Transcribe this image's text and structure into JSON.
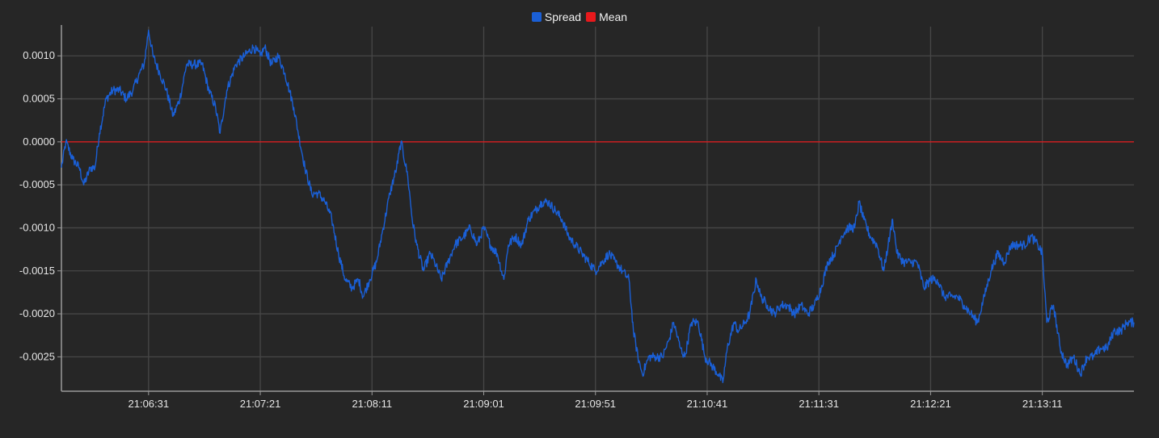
{
  "chart_data": {
    "type": "line",
    "legend_position": "top-center",
    "grid": true,
    "series": [
      {
        "name": "Spread",
        "color": "#1a5fd6",
        "x_start": "21:05:52",
        "x_end": "21:13:52",
        "anchors": [
          [
            "21:05:52",
            -0.0003
          ],
          [
            "21:05:54",
            0.0
          ],
          [
            "21:05:57",
            -0.0002
          ],
          [
            "21:06:00",
            -0.0003
          ],
          [
            "21:06:02",
            -0.0005
          ],
          [
            "21:06:05",
            -0.0003
          ],
          [
            "21:06:07",
            -0.0003
          ],
          [
            "21:06:09",
            0.0001
          ],
          [
            "21:06:12",
            0.0005
          ],
          [
            "21:06:15",
            0.0006
          ],
          [
            "21:06:18",
            0.0006
          ],
          [
            "21:06:21",
            0.0005
          ],
          [
            "21:06:24",
            0.0006
          ],
          [
            "21:06:27",
            0.0008
          ],
          [
            "21:06:29",
            0.0009
          ],
          [
            "21:06:31",
            0.0013
          ],
          [
            "21:06:33",
            0.001
          ],
          [
            "21:06:36",
            0.0008
          ],
          [
            "21:06:39",
            0.0006
          ],
          [
            "21:06:42",
            0.0003
          ],
          [
            "21:06:45",
            0.0005
          ],
          [
            "21:06:48",
            0.0009
          ],
          [
            "21:06:51",
            0.0009
          ],
          [
            "21:06:55",
            0.0009
          ],
          [
            "21:06:58",
            0.0006
          ],
          [
            "21:07:01",
            0.0004
          ],
          [
            "21:07:03",
            0.0001
          ],
          [
            "21:07:06",
            0.0006
          ],
          [
            "21:07:10",
            0.0009
          ],
          [
            "21:07:14",
            0.001
          ],
          [
            "21:07:18",
            0.0011
          ],
          [
            "21:07:21",
            0.001
          ],
          [
            "21:07:23",
            0.0011
          ],
          [
            "21:07:26",
            0.0009
          ],
          [
            "21:07:29",
            0.001
          ],
          [
            "21:07:32",
            0.0008
          ],
          [
            "21:07:34",
            0.0006
          ],
          [
            "21:07:36",
            0.0004
          ],
          [
            "21:07:38",
            0.0001
          ],
          [
            "21:07:41",
            -0.0003
          ],
          [
            "21:07:44",
            -0.0006
          ],
          [
            "21:07:47",
            -0.0006
          ],
          [
            "21:07:50",
            -0.0007
          ],
          [
            "21:07:53",
            -0.0009
          ],
          [
            "21:07:56",
            -0.0013
          ],
          [
            "21:07:59",
            -0.0016
          ],
          [
            "21:08:02",
            -0.0017
          ],
          [
            "21:08:05",
            -0.0016
          ],
          [
            "21:08:07",
            -0.0018
          ],
          [
            "21:08:10",
            -0.0016
          ],
          [
            "21:08:13",
            -0.0014
          ],
          [
            "21:08:16",
            -0.001
          ],
          [
            "21:08:19",
            -0.0006
          ],
          [
            "21:08:22",
            -0.0003
          ],
          [
            "21:08:24",
            0.0
          ],
          [
            "21:08:27",
            -0.0004
          ],
          [
            "21:08:29",
            -0.0009
          ],
          [
            "21:08:31",
            -0.0012
          ],
          [
            "21:08:34",
            -0.0015
          ],
          [
            "21:08:37",
            -0.0013
          ],
          [
            "21:08:39",
            -0.0014
          ],
          [
            "21:08:42",
            -0.0016
          ],
          [
            "21:08:45",
            -0.0014
          ],
          [
            "21:08:48",
            -0.0012
          ],
          [
            "21:08:52",
            -0.0011
          ],
          [
            "21:08:55",
            -0.001
          ],
          [
            "21:08:58",
            -0.0012
          ],
          [
            "21:09:01",
            -0.001
          ],
          [
            "21:09:04",
            -0.0012
          ],
          [
            "21:09:07",
            -0.0013
          ],
          [
            "21:09:10",
            -0.0016
          ],
          [
            "21:09:12",
            -0.0012
          ],
          [
            "21:09:15",
            -0.0011
          ],
          [
            "21:09:18",
            -0.0012
          ],
          [
            "21:09:21",
            -0.0009
          ],
          [
            "21:09:24",
            -0.0008
          ],
          [
            "21:09:27",
            -0.0007
          ],
          [
            "21:09:30",
            -0.0007
          ],
          [
            "21:09:33",
            -0.0008
          ],
          [
            "21:09:36",
            -0.0009
          ],
          [
            "21:09:39",
            -0.0011
          ],
          [
            "21:09:42",
            -0.0012
          ],
          [
            "21:09:45",
            -0.0013
          ],
          [
            "21:09:48",
            -0.0014
          ],
          [
            "21:09:51",
            -0.0015
          ],
          [
            "21:09:54",
            -0.0014
          ],
          [
            "21:09:57",
            -0.0013
          ],
          [
            "21:10:00",
            -0.0014
          ],
          [
            "21:10:03",
            -0.0015
          ],
          [
            "21:10:06",
            -0.0016
          ],
          [
            "21:10:08",
            -0.0022
          ],
          [
            "21:10:10",
            -0.0025
          ],
          [
            "21:10:12",
            -0.0027
          ],
          [
            "21:10:15",
            -0.0025
          ],
          [
            "21:10:18",
            -0.0025
          ],
          [
            "21:10:21",
            -0.0025
          ],
          [
            "21:10:24",
            -0.0023
          ],
          [
            "21:10:26",
            -0.0021
          ],
          [
            "21:10:29",
            -0.0024
          ],
          [
            "21:10:31",
            -0.0025
          ],
          [
            "21:10:34",
            -0.0021
          ],
          [
            "21:10:37",
            -0.0021
          ],
          [
            "21:10:40",
            -0.0025
          ],
          [
            "21:10:43",
            -0.0026
          ],
          [
            "21:10:46",
            -0.0027
          ],
          [
            "21:10:48",
            -0.0028
          ],
          [
            "21:10:50",
            -0.0024
          ],
          [
            "21:10:53",
            -0.0021
          ],
          [
            "21:10:55",
            -0.0022
          ],
          [
            "21:10:58",
            -0.0021
          ],
          [
            "21:11:00",
            -0.002
          ],
          [
            "21:11:03",
            -0.0016
          ],
          [
            "21:11:05",
            -0.0018
          ],
          [
            "21:11:08",
            -0.0019
          ],
          [
            "21:11:11",
            -0.002
          ],
          [
            "21:11:14",
            -0.0019
          ],
          [
            "21:11:17",
            -0.0019
          ],
          [
            "21:11:20",
            -0.002
          ],
          [
            "21:11:23",
            -0.0019
          ],
          [
            "21:11:26",
            -0.002
          ],
          [
            "21:11:29",
            -0.0019
          ],
          [
            "21:11:32",
            -0.0017
          ],
          [
            "21:11:35",
            -0.0014
          ],
          [
            "21:11:38",
            -0.0013
          ],
          [
            "21:11:41",
            -0.0011
          ],
          [
            "21:11:44",
            -0.001
          ],
          [
            "21:11:47",
            -0.001
          ],
          [
            "21:11:49",
            -0.0007
          ],
          [
            "21:11:51",
            -0.0009
          ],
          [
            "21:11:54",
            -0.0011
          ],
          [
            "21:11:57",
            -0.0012
          ],
          [
            "21:12:00",
            -0.0015
          ],
          [
            "21:12:02",
            -0.0012
          ],
          [
            "21:12:04",
            -0.0009
          ],
          [
            "21:12:06",
            -0.0013
          ],
          [
            "21:12:09",
            -0.0014
          ],
          [
            "21:12:12",
            -0.0014
          ],
          [
            "21:12:15",
            -0.0014
          ],
          [
            "21:12:18",
            -0.0017
          ],
          [
            "21:12:21",
            -0.0016
          ],
          [
            "21:12:24",
            -0.0016
          ],
          [
            "21:12:27",
            -0.0018
          ],
          [
            "21:12:30",
            -0.0018
          ],
          [
            "21:12:33",
            -0.0018
          ],
          [
            "21:12:36",
            -0.0019
          ],
          [
            "21:12:39",
            -0.002
          ],
          [
            "21:12:42",
            -0.0021
          ],
          [
            "21:12:45",
            -0.0018
          ],
          [
            "21:12:48",
            -0.0015
          ],
          [
            "21:12:51",
            -0.0013
          ],
          [
            "21:12:54",
            -0.0014
          ],
          [
            "21:12:57",
            -0.0012
          ],
          [
            "21:13:00",
            -0.0012
          ],
          [
            "21:13:03",
            -0.0012
          ],
          [
            "21:13:06",
            -0.0011
          ],
          [
            "21:13:09",
            -0.0012
          ],
          [
            "21:13:11",
            -0.0013
          ],
          [
            "21:13:13",
            -0.0021
          ],
          [
            "21:13:16",
            -0.0019
          ],
          [
            "21:13:19",
            -0.0024
          ],
          [
            "21:13:22",
            -0.0026
          ],
          [
            "21:13:25",
            -0.0025
          ],
          [
            "21:13:28",
            -0.0027
          ],
          [
            "21:13:31",
            -0.0025
          ],
          [
            "21:13:34",
            -0.0025
          ],
          [
            "21:13:37",
            -0.0024
          ],
          [
            "21:13:40",
            -0.0024
          ],
          [
            "21:13:43",
            -0.0022
          ],
          [
            "21:13:46",
            -0.0022
          ],
          [
            "21:13:49",
            -0.0021
          ],
          [
            "21:13:52",
            -0.0021
          ]
        ]
      },
      {
        "name": "Mean",
        "color": "#e8191c",
        "y": 0.0
      }
    ],
    "x_ticks": [
      "21:06:31",
      "21:07:21",
      "21:08:11",
      "21:09:01",
      "21:09:51",
      "21:10:41",
      "21:11:31",
      "21:12:21",
      "21:13:11"
    ],
    "y_ticks": [
      "0.0010",
      "0.0005",
      "0.0000",
      "-0.0005",
      "-0.0010",
      "-0.0015",
      "-0.0020",
      "-0.0025"
    ],
    "ylim": [
      -0.0029,
      0.00134
    ],
    "xlim": [
      "21:05:52",
      "21:13:52"
    ]
  },
  "colors": {
    "background": "#262626",
    "grid": "#474747",
    "axis": "#9a9a9a",
    "tick_text": "#e6e6e6"
  }
}
